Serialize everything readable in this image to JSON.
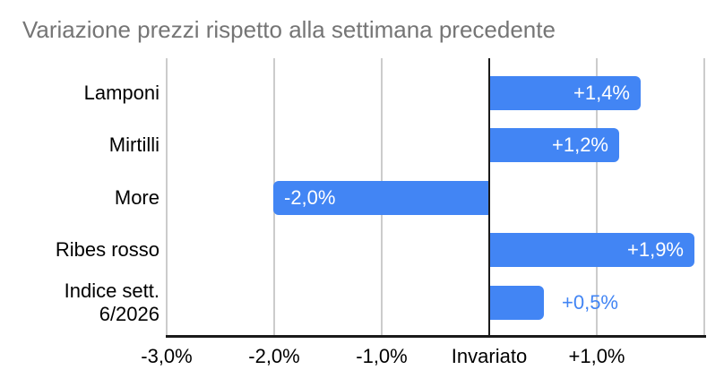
{
  "chart_data": {
    "type": "bar",
    "orientation": "horizontal",
    "title": "Variazione prezzi rispetto alla settimana precedente",
    "categories": [
      "Lamponi",
      "Mirtilli",
      "More",
      "Ribes rosso",
      "Indice sett. 6/2026"
    ],
    "values": [
      1.4,
      1.2,
      -2.0,
      1.9,
      0.5
    ],
    "bar_labels": [
      "+1,4%",
      "+1,2%",
      "-2,0%",
      "+1,9%",
      "+0,5%"
    ],
    "bar_label_placement": [
      "inside",
      "inside",
      "inside",
      "inside",
      "outside"
    ],
    "x_ticks": [
      {
        "value": -3,
        "label": "-3,0%"
      },
      {
        "value": -2,
        "label": "-2,0%"
      },
      {
        "value": -1,
        "label": "-1,0%"
      },
      {
        "value": 0,
        "label": "Invariato"
      },
      {
        "value": 1,
        "label": "+1,0%"
      }
    ],
    "xlim": [
      -3,
      2
    ],
    "grid": true,
    "legend": "none",
    "colors": {
      "bar": "#4285f4",
      "bar_label_inside": "#ffffff",
      "bar_label_outside": "#4285f4",
      "title": "#757575",
      "axis_label": "#000000",
      "gridline": "#cccccc",
      "zero_line": "#1a1a1a",
      "axis_line": "#1a1a1a",
      "background": "#ffffff"
    }
  }
}
